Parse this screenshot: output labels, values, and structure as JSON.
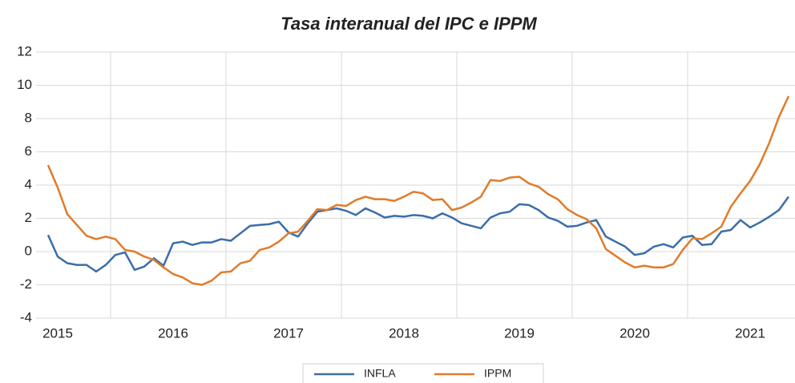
{
  "chart_data": {
    "type": "line",
    "title": "Tasa interanual del IPC e IPPM",
    "categories": [
      null,
      "2015",
      null,
      null,
      null,
      null,
      null,
      null,
      null,
      null,
      null,
      null,
      null,
      "2016",
      null,
      null,
      null,
      null,
      null,
      null,
      null,
      null,
      null,
      null,
      null,
      "2017",
      null,
      null,
      null,
      null,
      null,
      null,
      null,
      null,
      null,
      null,
      null,
      "2018",
      null,
      null,
      null,
      null,
      null,
      null,
      null,
      null,
      null,
      null,
      null,
      "2019",
      null,
      null,
      null,
      null,
      null,
      null,
      null,
      null,
      null,
      null,
      null,
      "2020",
      null,
      null,
      null,
      null,
      null,
      null,
      null,
      null,
      null,
      null,
      null,
      "2021",
      null,
      null,
      null,
      null
    ],
    "series": [
      {
        "name": "INFLA",
        "color": "#3a6ea8",
        "values": [
          1.0,
          -0.3,
          -0.7,
          -0.8,
          -0.8,
          -1.2,
          -0.8,
          -0.2,
          -0.05,
          -1.1,
          -0.9,
          -0.4,
          -0.85,
          0.5,
          0.6,
          0.4,
          0.55,
          0.55,
          0.75,
          0.65,
          1.1,
          1.55,
          1.6,
          1.65,
          1.8,
          1.15,
          0.9,
          1.7,
          2.4,
          2.5,
          2.6,
          2.45,
          2.2,
          2.6,
          2.35,
          2.05,
          2.15,
          2.1,
          2.2,
          2.15,
          2.0,
          2.3,
          2.05,
          1.7,
          1.55,
          1.4,
          2.05,
          2.3,
          2.4,
          2.85,
          2.8,
          2.5,
          2.05,
          1.85,
          1.5,
          1.55,
          1.75,
          1.9,
          0.9,
          0.6,
          0.3,
          -0.2,
          -0.1,
          0.3,
          0.45,
          0.25,
          0.85,
          0.95,
          0.4,
          0.45,
          1.2,
          1.3,
          1.9,
          1.45,
          1.75,
          2.1,
          2.5,
          3.3
        ]
      },
      {
        "name": "IPPM",
        "color": "#e07b2a",
        "values": [
          5.2,
          3.85,
          2.25,
          1.6,
          0.95,
          0.75,
          0.9,
          0.75,
          0.1,
          0.0,
          -0.3,
          -0.5,
          -0.95,
          -1.35,
          -1.55,
          -1.9,
          -2.0,
          -1.75,
          -1.25,
          -1.2,
          -0.7,
          -0.55,
          0.1,
          0.25,
          0.6,
          1.1,
          1.2,
          1.85,
          2.55,
          2.5,
          2.8,
          2.75,
          3.1,
          3.3,
          3.15,
          3.15,
          3.05,
          3.3,
          3.6,
          3.5,
          3.1,
          3.15,
          2.5,
          2.65,
          2.95,
          3.3,
          4.3,
          4.25,
          4.45,
          4.5,
          4.1,
          3.9,
          3.45,
          3.15,
          2.55,
          2.2,
          1.95,
          1.4,
          0.15,
          -0.25,
          -0.65,
          -0.95,
          -0.85,
          -0.95,
          -0.95,
          -0.75,
          0.1,
          0.8,
          0.75,
          1.1,
          1.5,
          2.7,
          3.5,
          4.25,
          5.25,
          6.55,
          8.1,
          9.35
        ]
      }
    ],
    "ylim": [
      -4,
      12
    ],
    "yticks": [
      -4,
      -2,
      0,
      2,
      4,
      6,
      8,
      10,
      12
    ],
    "grid": true
  }
}
